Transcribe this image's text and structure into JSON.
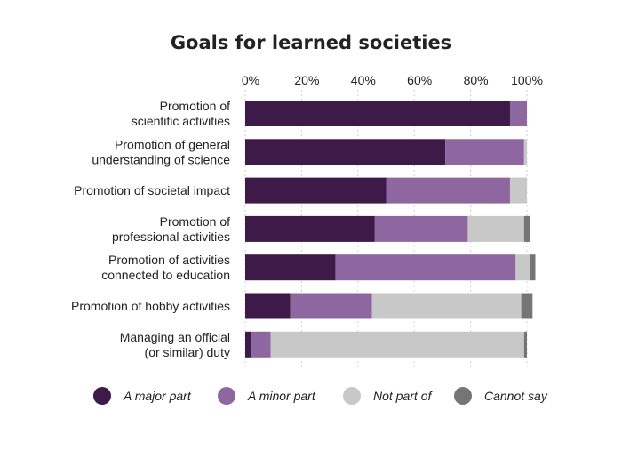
{
  "chart_data": {
    "type": "bar",
    "orientation": "horizontal",
    "stacked": true,
    "title": "Goals for learned societies",
    "xlabel": "",
    "ylabel": "",
    "xlim": [
      0,
      100
    ],
    "x_ticks": [
      "0%",
      "20%",
      "40%",
      "60%",
      "80%",
      "100%"
    ],
    "x_axis_position": "top",
    "grid": true,
    "legend_position": "bottom",
    "categories": [
      [
        "Promotion of",
        "scientific activities"
      ],
      [
        "Promotion of general",
        "understanding of science"
      ],
      [
        "Promotion of societal impact"
      ],
      [
        "Promotion of",
        "professional activities"
      ],
      [
        "Promotion of activities",
        "connected to education"
      ],
      [
        "Promotion of hobby activities"
      ],
      [
        "Managing an official",
        "(or similar) duty"
      ]
    ],
    "series": [
      {
        "name": "A major part",
        "color": "#3d1a47",
        "values": [
          94,
          71,
          50,
          46,
          32,
          16,
          2
        ]
      },
      {
        "name": "A minor part",
        "color": "#8e67a0",
        "values": [
          6,
          28,
          44,
          33,
          64,
          29,
          7
        ]
      },
      {
        "name": "Not part of",
        "color": "#c8c8c8",
        "values": [
          0,
          1,
          6,
          20,
          5,
          53,
          90
        ]
      },
      {
        "name": "Cannot say",
        "color": "#757575",
        "values": [
          0,
          0,
          0,
          2,
          2,
          4,
          1
        ]
      }
    ]
  }
}
